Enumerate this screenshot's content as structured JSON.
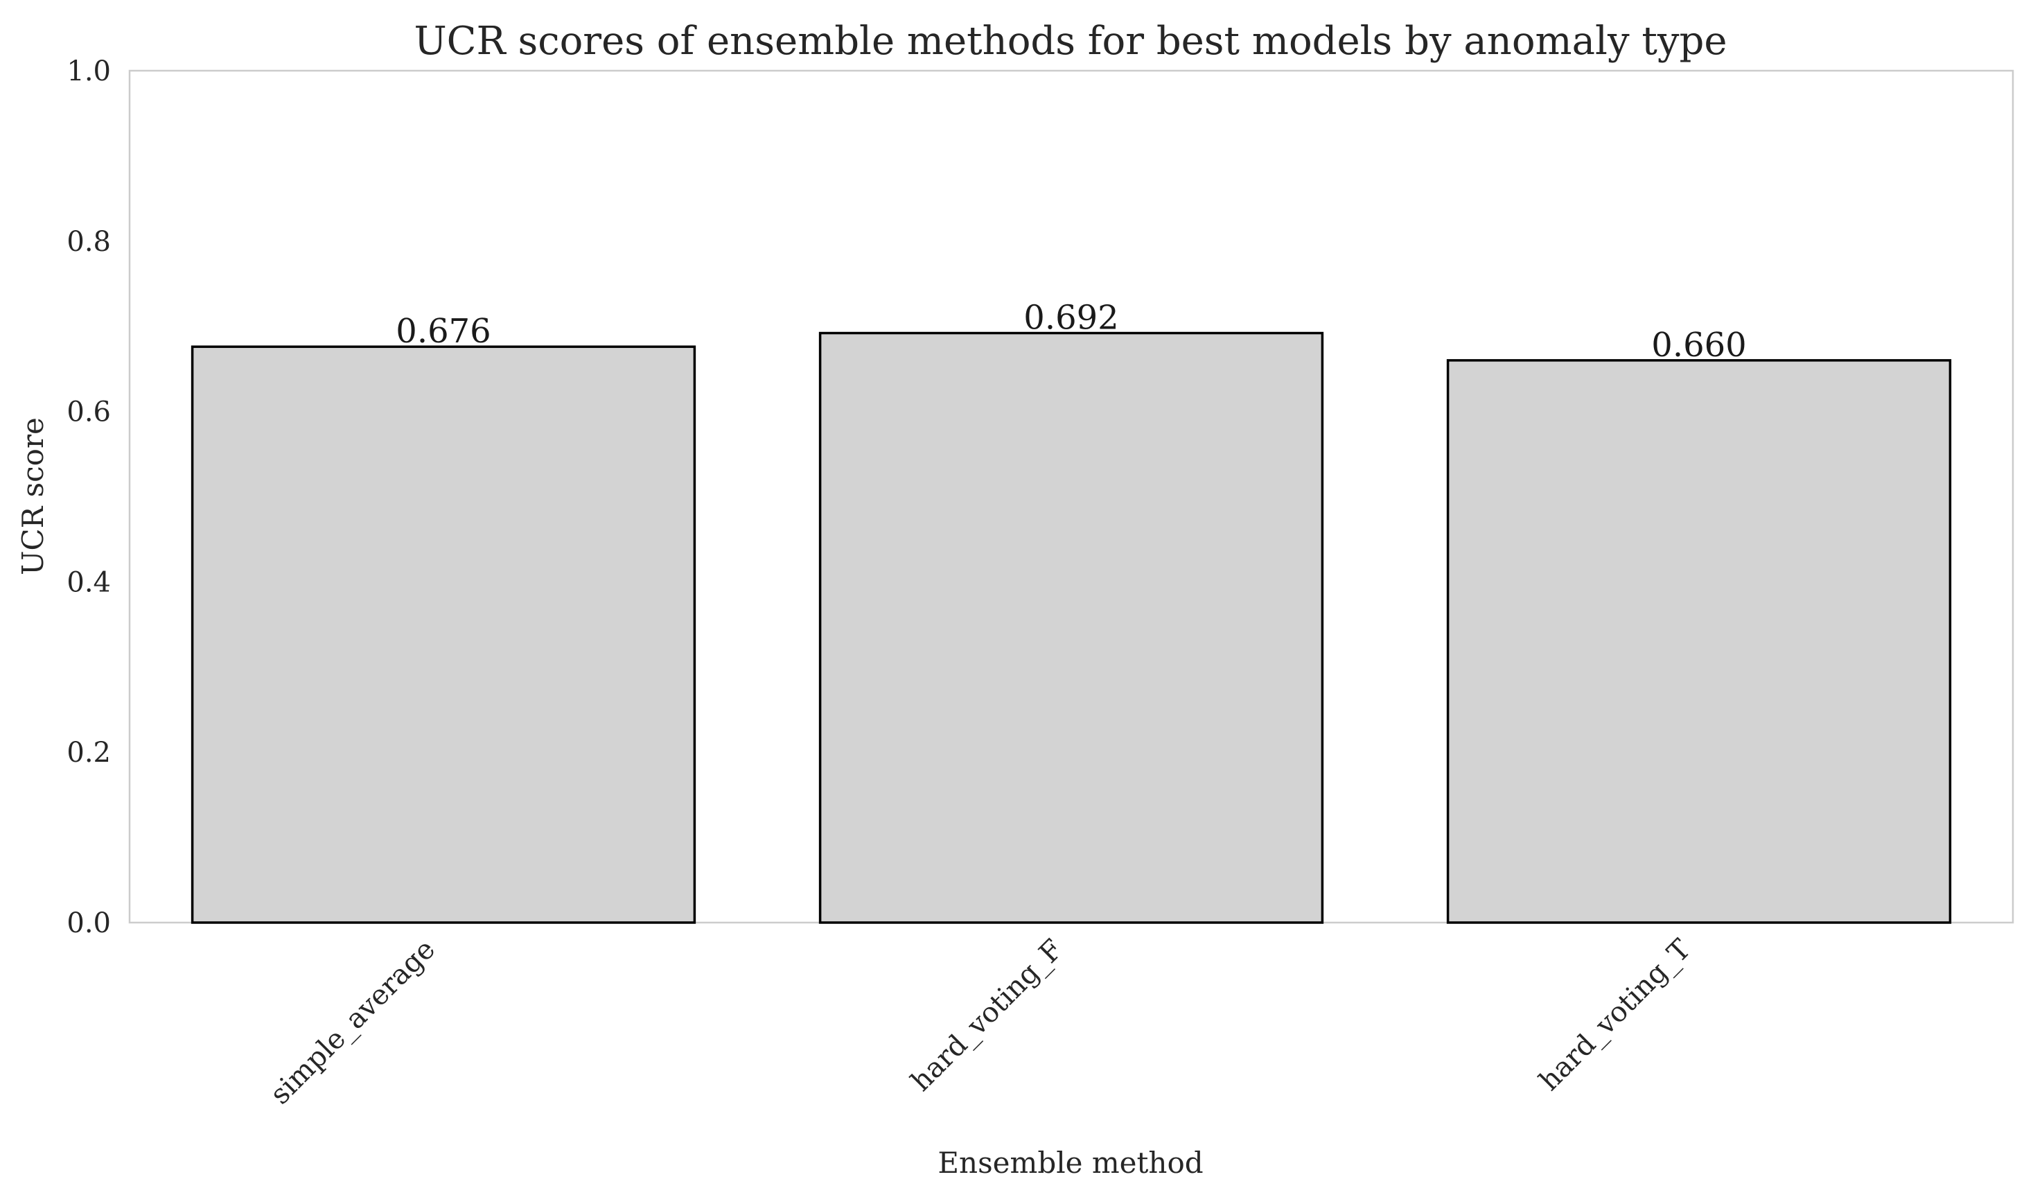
{
  "chart_data": {
    "type": "bar",
    "title": "UCR scores of ensemble methods for best models by anomaly type",
    "xlabel": "Ensemble method",
    "ylabel": "UCR score",
    "categories": [
      "simple_average",
      "hard_voting_F",
      "hard_voting_T"
    ],
    "values": [
      0.676,
      0.692,
      0.66
    ],
    "data_labels": [
      "0.676",
      "0.692",
      "0.660"
    ],
    "ylim": [
      0,
      1.0
    ],
    "yticks": [
      "0.0",
      "0.2",
      "0.4",
      "0.6",
      "0.8",
      "1.0"
    ],
    "grid": false,
    "legend": "none",
    "colors": {
      "bar_fill": "#d3d3d3",
      "bar_edge": "#000000",
      "frame": "#cccccc"
    }
  }
}
